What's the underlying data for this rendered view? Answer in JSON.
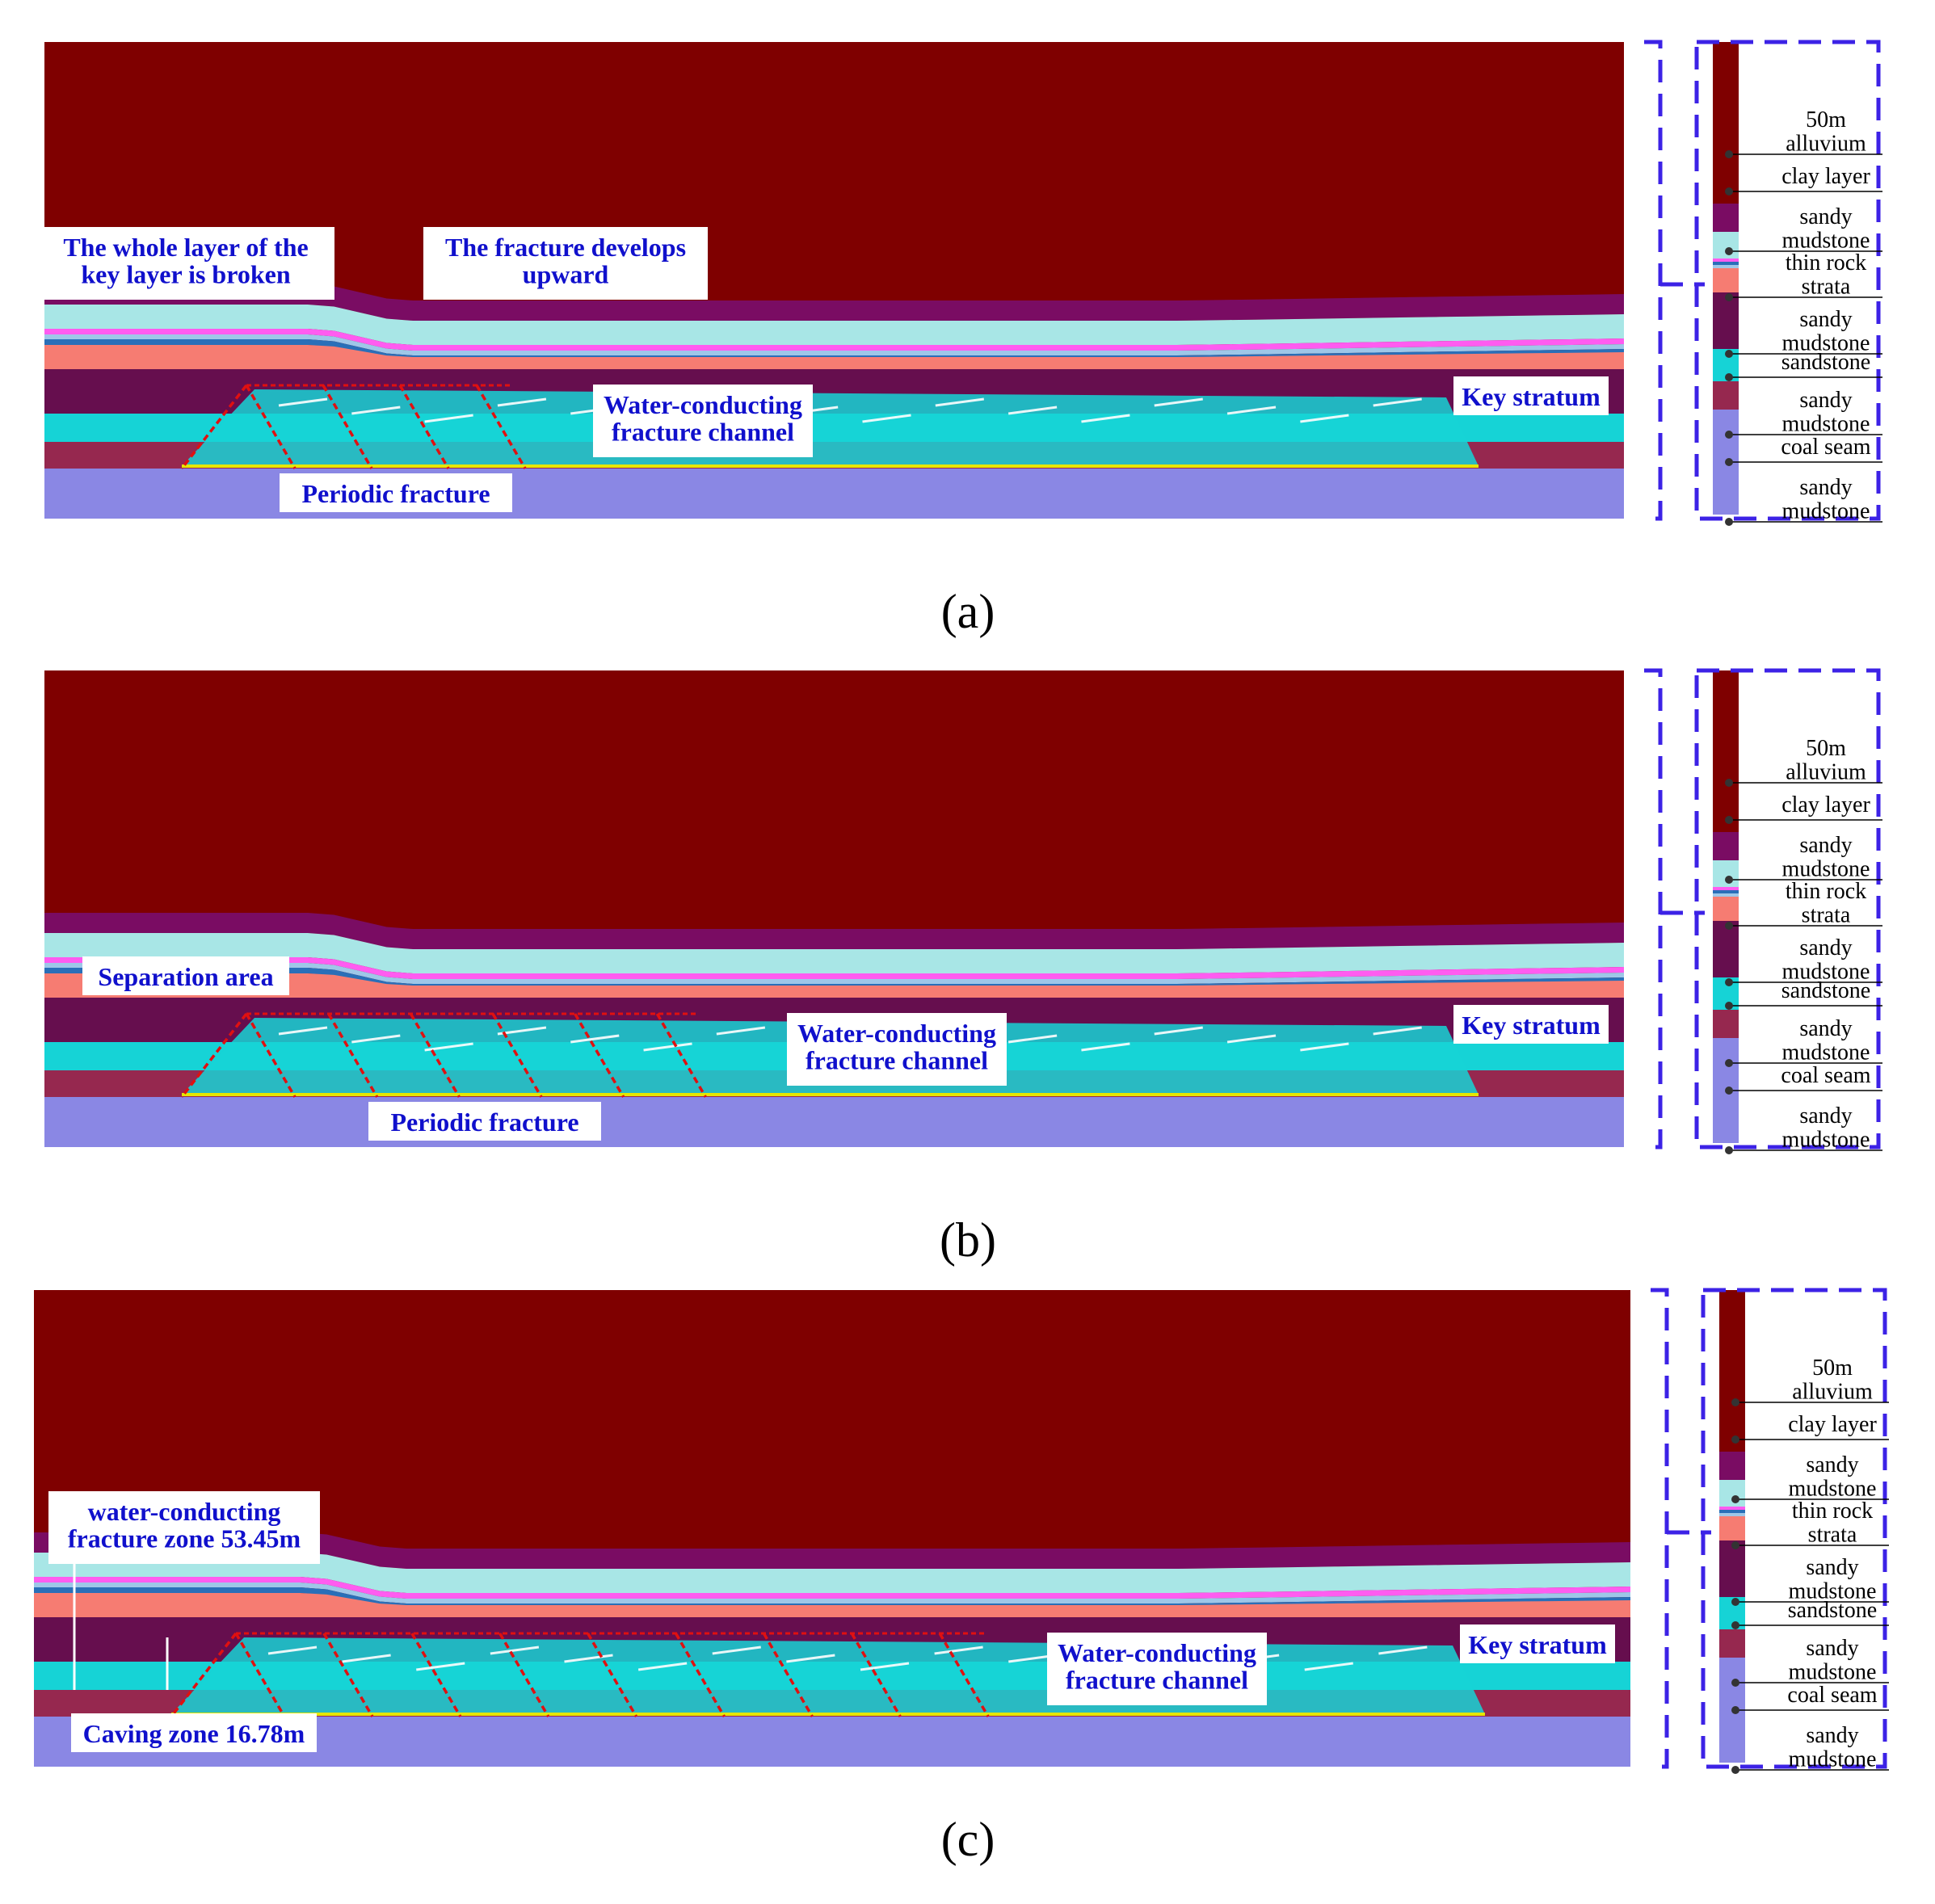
{
  "colors": {
    "alluvium": "#7f0000",
    "clay": "#7a0c63",
    "sandy_mudstone_light": "#a8e6e6",
    "thin_rock_pink": "#ff5cf0",
    "thin_rock_blue": "#2a6fb8",
    "thin_rock_light": "#9ec7e8",
    "sandy_mudstone_salmon": "#f67c72",
    "sandstone": "#660e4e",
    "sandy_mudstone_cyan": "#16d3d6",
    "coal_seam": "#96284f",
    "floor_sandy_mudstone": "#8a87e4",
    "callout_text": "#1010cc",
    "dash_blue": "#3c22e6",
    "fracture_red": "#e01010"
  },
  "legend": {
    "labels": [
      "50m\nalluvium",
      "clay layer",
      "sandy\nmudstone",
      "thin rock\nstrata",
      "sandy\nmudstone",
      "sandstone",
      "sandy\nmudstone",
      "coal seam",
      "sandy\nmudstone"
    ]
  },
  "panels": [
    {
      "caption": "(a)",
      "annotations": [
        {
          "key": "broken",
          "text": "The whole layer of the\nkey layer is broken"
        },
        {
          "key": "develops",
          "text": "The fracture develops\nupward"
        },
        {
          "key": "channel",
          "text": "Water-conducting\nfracture channel"
        },
        {
          "key": "key",
          "text": "Key stratum"
        },
        {
          "key": "periodic",
          "text": "Periodic fracture"
        }
      ]
    },
    {
      "caption": "(b)",
      "annotations": [
        {
          "key": "separation",
          "text": "Separation area"
        },
        {
          "key": "channel",
          "text": "Water-conducting\nfracture channel"
        },
        {
          "key": "key",
          "text": "Key stratum"
        },
        {
          "key": "periodic",
          "text": "Periodic fracture"
        }
      ]
    },
    {
      "caption": "(c)",
      "annotations": [
        {
          "key": "wczone",
          "text": "water-conducting\nfracture zone 53.45m"
        },
        {
          "key": "caving",
          "text": "Caving zone 16.78m"
        },
        {
          "key": "channel",
          "text": "Water-conducting\nfracture channel"
        },
        {
          "key": "key",
          "text": "Key stratum"
        }
      ]
    }
  ]
}
